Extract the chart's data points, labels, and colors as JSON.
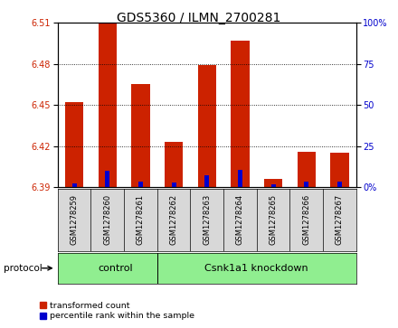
{
  "title": "GDS5360 / ILMN_2700281",
  "samples": [
    "GSM1278259",
    "GSM1278260",
    "GSM1278261",
    "GSM1278262",
    "GSM1278263",
    "GSM1278264",
    "GSM1278265",
    "GSM1278266",
    "GSM1278267"
  ],
  "red_values": [
    6.452,
    6.51,
    6.465,
    6.423,
    6.479,
    6.497,
    6.396,
    6.416,
    6.415
  ],
  "blue_values": [
    2.0,
    10.0,
    3.0,
    2.5,
    7.0,
    10.5,
    1.5,
    3.5,
    3.0
  ],
  "ylim_left": [
    6.39,
    6.51
  ],
  "ylim_right": [
    0,
    100
  ],
  "yticks_left": [
    6.39,
    6.42,
    6.45,
    6.48,
    6.51
  ],
  "yticks_right": [
    0,
    25,
    50,
    75,
    100
  ],
  "ytick_labels_right": [
    "0%",
    "25",
    "50",
    "75",
    "100%"
  ],
  "bar_baseline": 6.39,
  "bar_width": 0.55,
  "red_color": "#cc2200",
  "blue_color": "#0000cc",
  "control_samples": 3,
  "control_label": "control",
  "knockdown_label": "Csnk1a1 knockdown",
  "protocol_label": "protocol",
  "legend_red": "transformed count",
  "legend_blue": "percentile rank within the sample",
  "bg_color": "#d8d8d8",
  "plot_bg": "#ffffff",
  "green_bg": "#90ee90",
  "title_fontsize": 10,
  "tick_fontsize": 7,
  "label_fontsize": 7
}
